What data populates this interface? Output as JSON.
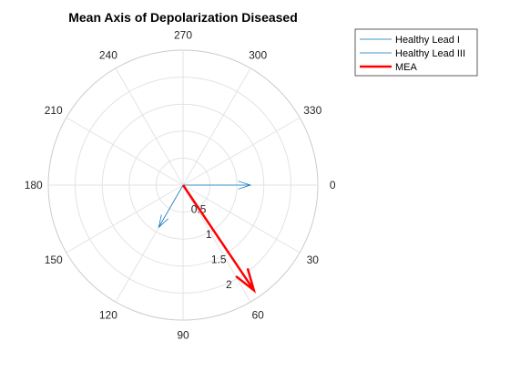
{
  "chart_data": {
    "type": "polar",
    "title": "Mean Axis of Depolarization Diseased",
    "angle_direction": "clockwise",
    "zero_location": "right",
    "theta_ticks": [
      0,
      30,
      60,
      90,
      120,
      150,
      180,
      210,
      240,
      270,
      300,
      330
    ],
    "theta_tick_labels": [
      "0",
      "30",
      "60",
      "90",
      "120",
      "150",
      "180",
      "210",
      "240",
      "270",
      "300",
      "330"
    ],
    "r_ticks": [
      0.5,
      1,
      1.5,
      2
    ],
    "r_tick_labels": [
      "0.5",
      "1",
      "1.5",
      "2"
    ],
    "rlim": [
      0,
      2.5
    ],
    "grid": true,
    "legend_location": "top-right, outside",
    "series": [
      {
        "name": "Healthy Lead I",
        "angle_deg": 0,
        "magnitude": 1.25,
        "color": "#0072BD",
        "line_width": 0.75
      },
      {
        "name": "Healthy Lead III",
        "angle_deg": 120,
        "magnitude": 0.9,
        "color": "#0072BD",
        "line_width": 0.75
      },
      {
        "name": "MEA",
        "angle_deg": 56,
        "magnitude": 2.35,
        "color": "#FF0000",
        "line_width": 2.5
      }
    ]
  }
}
